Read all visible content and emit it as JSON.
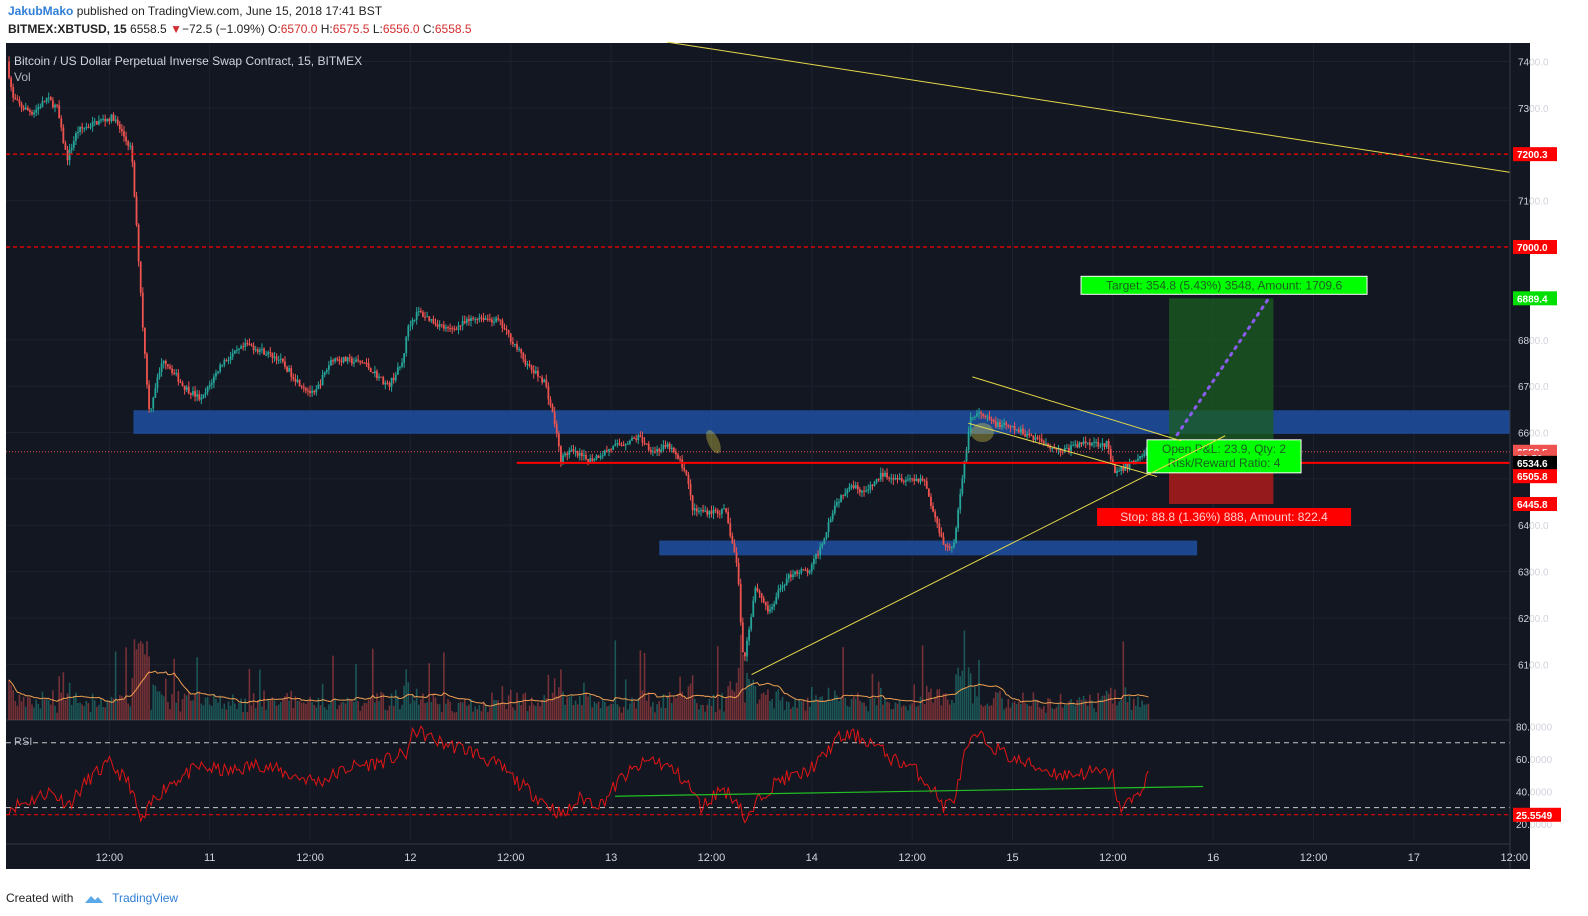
{
  "header": {
    "author": "JakubMako",
    "published_text": "published on TradingView.com, June 15, 2018 17:41 BST",
    "symbol": "BITMEX:XBTUSD, 15",
    "last": "6558.5",
    "change_arrow": "▼",
    "change": "−72.5 (−1.09%)",
    "o_label": "O:",
    "o": "6570.0",
    "h_label": "H:",
    "h": "6575.5",
    "l_label": "L:",
    "l": "6556.0",
    "c_label": "C:",
    "c": "6558.5"
  },
  "chart_title": "Bitcoin / US Dollar Perpetual Inverse Swap Contract, 15, BITMEX",
  "vol_label": "Vol",
  "rsi_label": "RSI",
  "footer": {
    "created_with": "Created with",
    "brand": "TradingView"
  },
  "colors": {
    "background": "#131722",
    "up": "#26a69a",
    "down": "#ef5350",
    "zone": "#1e4fa0",
    "trend": "#e5d94a",
    "level": "#ff0000",
    "target": "#00ff00",
    "stop": "#ff0000",
    "rsi": "#e01515"
  },
  "chart_data": {
    "type": "candlestick",
    "time_labels": [
      {
        "t": 0.5,
        "label": "12:00"
      },
      {
        "t": 1.0,
        "label": "11"
      },
      {
        "t": 1.5,
        "label": "12:00"
      },
      {
        "t": 2.0,
        "label": "12"
      },
      {
        "t": 2.5,
        "label": "12:00"
      },
      {
        "t": 3.0,
        "label": "13"
      },
      {
        "t": 3.5,
        "label": "12:00"
      },
      {
        "t": 4.0,
        "label": "14"
      },
      {
        "t": 4.5,
        "label": "12:00"
      },
      {
        "t": 5.0,
        "label": "15"
      },
      {
        "t": 5.5,
        "label": "12:00"
      },
      {
        "t": 6.0,
        "label": "16"
      },
      {
        "t": 6.5,
        "label": "12:00"
      },
      {
        "t": 7.0,
        "label": "17"
      },
      {
        "t": 7.5,
        "label": "12:00"
      }
    ],
    "price_range": [
      5980,
      7440
    ],
    "price_ticks": [
      "6100.0",
      "6200.0",
      "6300.0",
      "6400.0",
      "6500.0",
      "6600.0",
      "6700.0",
      "6800.0",
      "7100.0",
      "7300.0",
      "7400.0"
    ],
    "price_tick_values": [
      6100,
      6200,
      6300,
      6400,
      6500,
      6600,
      6700,
      6800,
      7100,
      7300,
      7400
    ],
    "price_tags": [
      {
        "value": 7200.3,
        "label": "7200.3",
        "color": "#ff0000"
      },
      {
        "value": 7000.0,
        "label": "7000.0",
        "color": "#ff0000"
      },
      {
        "value": 6889.4,
        "label": "6889.4",
        "color": "#00e000"
      },
      {
        "value": 6558.5,
        "label": "6558.5",
        "color": "#ef5350"
      },
      {
        "value": 6545.0,
        "label": "03:50",
        "color": "#ef5350"
      },
      {
        "value": 6534.6,
        "label": "6534.6",
        "color": "#000000"
      },
      {
        "value": 6505.8,
        "label": "6505.8",
        "color": "#ff0000"
      },
      {
        "value": 6445.8,
        "label": "6445.8",
        "color": "#ff0000"
      }
    ],
    "horizontal_levels": [
      {
        "value": 7200.3,
        "style": "dashed"
      },
      {
        "value": 7000.0,
        "style": "dashed"
      },
      {
        "value": 6534.6,
        "style": "solid",
        "t_start": 2.53
      }
    ],
    "zones": [
      {
        "t_start": 0.62,
        "t_end": 7.57,
        "low": 6597,
        "high": 6648
      },
      {
        "t_start": 3.24,
        "t_end": 5.92,
        "low": 6335,
        "high": 6367
      }
    ],
    "trendlines": [
      {
        "t1": 3.28,
        "p1": 7442,
        "t2": 7.57,
        "p2": 7155
      },
      {
        "t1": 3.7,
        "p1": 6078,
        "t2": 6.06,
        "p2": 6593
      },
      {
        "t1": 4.8,
        "p1": 6720,
        "t2": 5.84,
        "p2": 6582
      },
      {
        "t1": 4.78,
        "p1": 6620,
        "t2": 5.72,
        "p2": 6505
      }
    ],
    "position": {
      "t_start": 5.78,
      "t_end": 6.3,
      "entry": 6534.6,
      "target": 6889.4,
      "stop": 6445.8,
      "target_label": "Target: 354.8 (5.43%) 3548, Amount: 1709.6",
      "stop_label": "Stop: 88.8 (1.36%) 888, Amount: 822.4",
      "pnl_label": "Open P&L: 23.9, Qty: 2",
      "rr_label": "Risk/Reward Ratio: 4"
    },
    "projection": {
      "t1": 5.82,
      "p1": 6595,
      "t2": 6.27,
      "p2": 6885
    },
    "price_keypoints": [
      [
        0.0,
        7400
      ],
      [
        0.03,
        7320
      ],
      [
        0.08,
        7300
      ],
      [
        0.13,
        7290
      ],
      [
        0.2,
        7320
      ],
      [
        0.25,
        7300
      ],
      [
        0.28,
        7230
      ],
      [
        0.3,
        7190
      ],
      [
        0.35,
        7250
      ],
      [
        0.45,
        7270
      ],
      [
        0.53,
        7280
      ],
      [
        0.62,
        7210
      ],
      [
        0.66,
        6950
      ],
      [
        0.68,
        6810
      ],
      [
        0.71,
        6640
      ],
      [
        0.74,
        6700
      ],
      [
        0.78,
        6760
      ],
      [
        0.88,
        6700
      ],
      [
        0.97,
        6670
      ],
      [
        1.07,
        6750
      ],
      [
        1.2,
        6790
      ],
      [
        1.35,
        6760
      ],
      [
        1.45,
        6710
      ],
      [
        1.53,
        6680
      ],
      [
        1.62,
        6760
      ],
      [
        1.78,
        6750
      ],
      [
        1.9,
        6700
      ],
      [
        1.97,
        6750
      ],
      [
        2.0,
        6830
      ],
      [
        2.05,
        6860
      ],
      [
        2.2,
        6820
      ],
      [
        2.35,
        6850
      ],
      [
        2.45,
        6840
      ],
      [
        2.53,
        6790
      ],
      [
        2.6,
        6740
      ],
      [
        2.68,
        6710
      ],
      [
        2.73,
        6620
      ],
      [
        2.76,
        6540
      ],
      [
        2.8,
        6560
      ],
      [
        2.9,
        6540
      ],
      [
        3.03,
        6570
      ],
      [
        3.15,
        6590
      ],
      [
        3.22,
        6560
      ],
      [
        3.3,
        6570
      ],
      [
        3.38,
        6520
      ],
      [
        3.42,
        6430
      ],
      [
        3.48,
        6430
      ],
      [
        3.58,
        6430
      ],
      [
        3.64,
        6310
      ],
      [
        3.67,
        6100
      ],
      [
        3.73,
        6270
      ],
      [
        3.8,
        6210
      ],
      [
        3.86,
        6270
      ],
      [
        3.92,
        6300
      ],
      [
        4.0,
        6300
      ],
      [
        4.06,
        6360
      ],
      [
        4.12,
        6440
      ],
      [
        4.2,
        6490
      ],
      [
        4.28,
        6470
      ],
      [
        4.36,
        6510
      ],
      [
        4.48,
        6500
      ],
      [
        4.57,
        6500
      ],
      [
        4.62,
        6420
      ],
      [
        4.68,
        6350
      ],
      [
        4.72,
        6360
      ],
      [
        4.76,
        6500
      ],
      [
        4.8,
        6630
      ],
      [
        4.84,
        6640
      ],
      [
        4.92,
        6620
      ],
      [
        5.0,
        6610
      ],
      [
        5.12,
        6590
      ],
      [
        5.25,
        6560
      ],
      [
        5.38,
        6580
      ],
      [
        5.48,
        6575
      ],
      [
        5.52,
        6510
      ],
      [
        5.62,
        6540
      ],
      [
        5.68,
        6560
      ]
    ],
    "rsi_range": [
      10,
      84
    ],
    "rsi_ticks": [
      "20.0000",
      "40.0000",
      "60.0000",
      "80.0000"
    ],
    "rsi_tick_values": [
      20,
      40,
      60,
      80
    ],
    "rsi_last": "25.5549",
    "rsi_bands": [
      30,
      70
    ],
    "rsi_keypoints": [
      [
        0.0,
        30
      ],
      [
        0.1,
        34
      ],
      [
        0.2,
        40
      ],
      [
        0.3,
        32
      ],
      [
        0.4,
        48
      ],
      [
        0.5,
        57
      ],
      [
        0.6,
        45
      ],
      [
        0.66,
        20
      ],
      [
        0.72,
        35
      ],
      [
        0.8,
        45
      ],
      [
        0.95,
        55
      ],
      [
        1.1,
        52
      ],
      [
        1.25,
        57
      ],
      [
        1.4,
        50
      ],
      [
        1.55,
        46
      ],
      [
        1.7,
        55
      ],
      [
        1.85,
        58
      ],
      [
        1.98,
        63
      ],
      [
        2.02,
        78
      ],
      [
        2.15,
        70
      ],
      [
        2.3,
        65
      ],
      [
        2.45,
        55
      ],
      [
        2.55,
        44
      ],
      [
        2.65,
        35
      ],
      [
        2.76,
        25
      ],
      [
        2.85,
        36
      ],
      [
        2.95,
        32
      ],
      [
        3.05,
        48
      ],
      [
        3.2,
        60
      ],
      [
        3.3,
        54
      ],
      [
        3.38,
        45
      ],
      [
        3.45,
        30
      ],
      [
        3.55,
        42
      ],
      [
        3.64,
        33
      ],
      [
        3.67,
        20
      ],
      [
        3.75,
        38
      ],
      [
        3.85,
        48
      ],
      [
        3.95,
        50
      ],
      [
        4.05,
        60
      ],
      [
        4.12,
        72
      ],
      [
        4.2,
        75
      ],
      [
        4.3,
        70
      ],
      [
        4.4,
        60
      ],
      [
        4.5,
        55
      ],
      [
        4.6,
        42
      ],
      [
        4.66,
        30
      ],
      [
        4.72,
        38
      ],
      [
        4.76,
        62
      ],
      [
        4.82,
        75
      ],
      [
        4.9,
        68
      ],
      [
        5.0,
        60
      ],
      [
        5.12,
        55
      ],
      [
        5.25,
        50
      ],
      [
        5.4,
        52
      ],
      [
        5.5,
        50
      ],
      [
        5.53,
        30
      ],
      [
        5.62,
        36
      ],
      [
        5.7,
        58
      ]
    ],
    "rsi_trendline": {
      "t1": 3.02,
      "v1": 37,
      "t2": 5.95,
      "v2": 43
    }
  }
}
